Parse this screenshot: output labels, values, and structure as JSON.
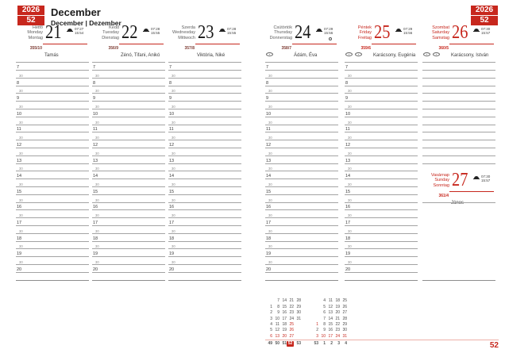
{
  "badge": {
    "year": "2026",
    "week": "52"
  },
  "title": {
    "month": "December",
    "subtitle": "December | Dezember"
  },
  "page_number": "52",
  "hours": [
    "7",
    "8",
    "9",
    "10",
    "11",
    "12",
    "13",
    "14",
    "15",
    "16",
    "17",
    "18",
    "19",
    "20"
  ],
  "half_hour_label": "30",
  "icons": {
    "sun": "sunset-icon",
    "moon": "full-moon-icon",
    "holiday_marker": "oval-marker-icon"
  },
  "days": [
    {
      "hu": "Hétfő",
      "en": "Monday",
      "de": "Montag",
      "number": "21",
      "day_of_year": "355/10",
      "name_days": "Tamás",
      "sunrise": "07:27",
      "sunset": "15:54",
      "holiday": false,
      "markers": 0,
      "moon": false
    },
    {
      "hu": "Kedd",
      "en": "Tuesday",
      "de": "Dienstag",
      "number": "22",
      "day_of_year": "356/9",
      "name_days": "Zénó, Tifani, Anikó",
      "sunrise": "07:28",
      "sunset": "15:55",
      "holiday": false,
      "markers": 0,
      "moon": false
    },
    {
      "hu": "Szerda",
      "en": "Wednesday",
      "de": "Mittwoch",
      "number": "23",
      "day_of_year": "357/8",
      "name_days": "Viktória, Niké",
      "sunrise": "07:28",
      "sunset": "15:55",
      "holiday": false,
      "markers": 0,
      "moon": false
    },
    {
      "hu": "Csütörtök",
      "en": "Thursday",
      "de": "Donnerstag",
      "number": "24",
      "day_of_year": "358/7",
      "name_days": "Ádám, Éva",
      "sunrise": "07:29",
      "sunset": "15:56",
      "holiday": false,
      "markers": 1,
      "moon": true
    },
    {
      "hu": "Péntek",
      "en": "Friday",
      "de": "Freitag",
      "number": "25",
      "day_of_year": "359/6",
      "name_days": "Karácsony, Eugénia",
      "sunrise": "07:29",
      "sunset": "15:56",
      "holiday": true,
      "markers": 2,
      "moon": false
    },
    {
      "hu": "Szombat",
      "en": "Saturday",
      "de": "Samstag",
      "number": "26",
      "day_of_year": "360/5",
      "name_days": "Karácsony, István",
      "sunrise": "07:30",
      "sunset": "15:57",
      "holiday": true,
      "markers": 2,
      "moon": false
    },
    {
      "hu": "Vasárnap",
      "en": "Sunday",
      "de": "Sonntag",
      "number": "27",
      "day_of_year": "361/4",
      "name_days": "János",
      "sunrise": "07:30",
      "sunset": "15:57",
      "holiday": true,
      "markers": 0,
      "moon": false
    }
  ],
  "mini_calendar": {
    "december_rows": [
      [
        "",
        "7",
        "14",
        "21",
        "28"
      ],
      [
        "1",
        "8",
        "15",
        "22",
        "29"
      ],
      [
        "2",
        "9",
        "16",
        "23",
        "30"
      ],
      [
        "3",
        "10",
        "17",
        "24",
        "31"
      ],
      [
        "4",
        "11",
        "18",
        "25",
        ""
      ],
      [
        "5",
        "12",
        "19",
        "26",
        ""
      ],
      [
        "6",
        "13",
        "20",
        "27",
        ""
      ]
    ],
    "january_rows": [
      [
        "",
        "4",
        "11",
        "18",
        "25"
      ],
      [
        "",
        "5",
        "12",
        "19",
        "26"
      ],
      [
        "",
        "6",
        "13",
        "20",
        "27"
      ],
      [
        "",
        "7",
        "14",
        "21",
        "28"
      ],
      [
        "1",
        "8",
        "15",
        "22",
        "29"
      ],
      [
        "2",
        "9",
        "16",
        "23",
        "30"
      ],
      [
        "3",
        "10",
        "17",
        "24",
        "31"
      ]
    ],
    "december_red_days": [
      "25",
      "26"
    ],
    "january_red_days": [
      "1"
    ],
    "sunday_row_index": 6,
    "week_numbers": [
      "49",
      "50",
      "51",
      "52",
      "53",
      "53",
      "1",
      "2",
      "3",
      "4"
    ],
    "current_week": "52"
  },
  "colors": {
    "red": "#c7271d",
    "line": "#a3a3a3",
    "pink_divider": "#eeb0a8"
  }
}
